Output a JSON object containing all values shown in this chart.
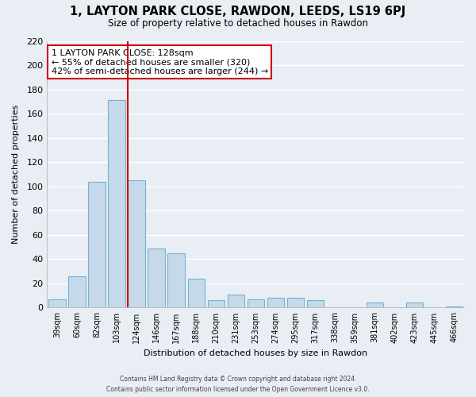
{
  "title": "1, LAYTON PARK CLOSE, RAWDON, LEEDS, LS19 6PJ",
  "subtitle": "Size of property relative to detached houses in Rawdon",
  "xlabel": "Distribution of detached houses by size in Rawdon",
  "ylabel": "Number of detached properties",
  "bar_color": "#c5d9ea",
  "bar_edge_color": "#7ab0d0",
  "categories": [
    "39sqm",
    "60sqm",
    "82sqm",
    "103sqm",
    "124sqm",
    "146sqm",
    "167sqm",
    "188sqm",
    "210sqm",
    "231sqm",
    "253sqm",
    "274sqm",
    "295sqm",
    "317sqm",
    "338sqm",
    "359sqm",
    "381sqm",
    "402sqm",
    "423sqm",
    "445sqm",
    "466sqm"
  ],
  "values": [
    7,
    26,
    104,
    171,
    105,
    49,
    45,
    24,
    6,
    11,
    7,
    8,
    8,
    6,
    0,
    0,
    4,
    0,
    4,
    0,
    1
  ],
  "ylim": [
    0,
    220
  ],
  "yticks": [
    0,
    20,
    40,
    60,
    80,
    100,
    120,
    140,
    160,
    180,
    200,
    220
  ],
  "property_line_idx": 4,
  "property_line_color": "#cc0000",
  "annotation_line1": "1 LAYTON PARK CLOSE: 128sqm",
  "annotation_line2": "← 55% of detached houses are smaller (320)",
  "annotation_line3": "42% of semi-detached houses are larger (244) →",
  "annotation_box_facecolor": "#ffffff",
  "annotation_box_edgecolor": "#cc0000",
  "footer_line1": "Contains HM Land Registry data © Crown copyright and database right 2024.",
  "footer_line2": "Contains public sector information licensed under the Open Government Licence v3.0.",
  "background_color": "#e8eef4",
  "grid_color": "#ffffff",
  "spine_color": "#aaaaaa"
}
